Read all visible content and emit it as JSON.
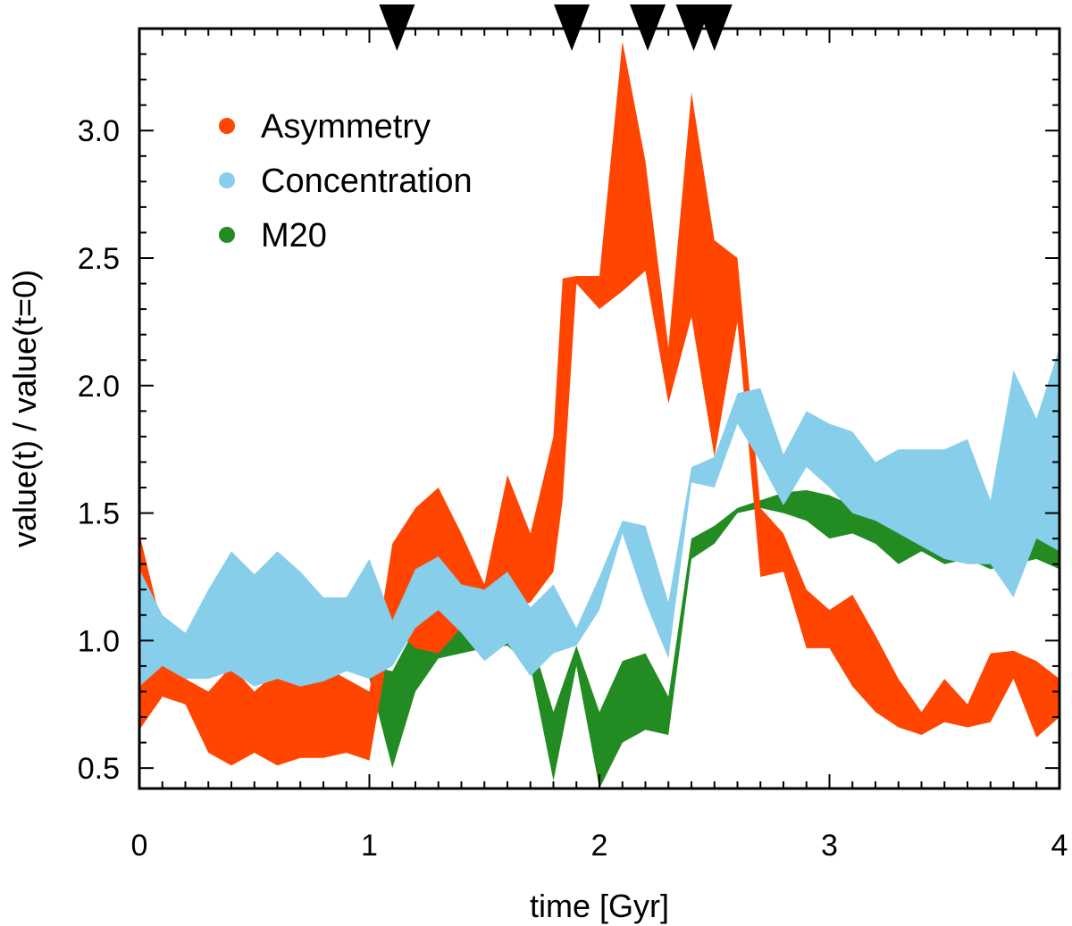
{
  "chart_data": {
    "type": "area",
    "xlabel": "time [Gyr]",
    "ylabel": "value(t) / value(t=0)",
    "xlim": [
      0,
      4
    ],
    "ylim": [
      0.42,
      3.4
    ],
    "xticks": [
      {
        "value": 0,
        "label": "0"
      },
      {
        "value": 1,
        "label": "1"
      },
      {
        "value": 2,
        "label": "2"
      },
      {
        "value": 3,
        "label": "3"
      },
      {
        "value": 4,
        "label": "4"
      }
    ],
    "yticks": [
      {
        "value": 0.5,
        "label": "0.5"
      },
      {
        "value": 1.0,
        "label": "1.0"
      },
      {
        "value": 1.5,
        "label": "1.5"
      },
      {
        "value": 2.0,
        "label": "2.0"
      },
      {
        "value": 2.5,
        "label": "2.5"
      },
      {
        "value": 3.0,
        "label": "3.0"
      }
    ],
    "event_markers": [
      1.12,
      1.88,
      2.21,
      2.41,
      2.5
    ],
    "legend_position": "top-left",
    "series": [
      {
        "name": "M20",
        "color": "#228B22",
        "x": [
          1.0,
          1.1,
          1.2,
          1.3,
          1.4,
          1.5,
          1.6,
          1.7,
          1.8,
          1.9,
          2.0,
          2.1,
          2.2,
          2.3,
          2.4,
          2.5,
          2.6,
          2.7,
          2.8,
          2.9,
          3.0,
          3.1,
          3.2,
          3.3,
          3.4,
          3.5,
          3.6,
          3.7,
          3.8,
          3.9,
          4.0
        ],
        "upper": [
          0.9,
          0.88,
          1.05,
          1.0,
          1.1,
          1.08,
          1.12,
          1.02,
          0.72,
          0.98,
          0.72,
          0.92,
          0.95,
          0.78,
          1.4,
          1.45,
          1.52,
          1.55,
          1.58,
          1.59,
          1.57,
          1.53,
          1.5,
          1.45,
          1.4,
          1.45,
          1.48,
          1.42,
          1.45,
          1.5,
          1.5
        ],
        "lower": [
          0.85,
          0.5,
          0.8,
          0.93,
          0.95,
          0.97,
          0.98,
          0.9,
          0.45,
          0.9,
          0.42,
          0.6,
          0.65,
          0.63,
          1.32,
          1.38,
          1.5,
          1.52,
          1.5,
          1.47,
          1.4,
          1.42,
          1.38,
          1.3,
          1.35,
          1.3,
          1.32,
          1.28,
          1.3,
          1.32,
          1.28
        ]
      },
      {
        "name": "Asymmetry",
        "color": "#FF4500",
        "x": [
          0.0,
          0.1,
          0.2,
          0.3,
          0.4,
          0.5,
          0.6,
          0.7,
          0.8,
          0.9,
          1.0,
          1.1,
          1.2,
          1.3,
          1.4,
          1.5,
          1.6,
          1.7,
          1.8,
          1.84,
          1.9,
          2.0,
          2.1,
          2.2,
          2.3,
          2.4,
          2.5,
          2.6,
          2.7,
          2.8,
          2.9,
          3.0,
          3.1,
          3.2,
          3.3,
          3.4,
          3.5,
          3.6,
          3.7,
          3.8,
          3.9,
          4.0
        ],
        "upper": [
          1.42,
          1.05,
          0.85,
          0.8,
          0.9,
          0.8,
          0.88,
          0.85,
          0.9,
          0.85,
          0.8,
          1.38,
          1.52,
          1.6,
          1.42,
          1.22,
          1.65,
          1.42,
          1.8,
          2.42,
          2.43,
          2.43,
          3.35,
          2.88,
          2.15,
          3.15,
          2.57,
          2.5,
          1.52,
          1.42,
          1.2,
          1.12,
          1.18,
          1.02,
          0.85,
          0.72,
          0.85,
          0.75,
          0.95,
          0.96,
          0.92,
          0.85
        ],
        "lower": [
          0.65,
          0.78,
          0.75,
          0.56,
          0.51,
          0.56,
          0.51,
          0.54,
          0.54,
          0.56,
          0.53,
          1.05,
          0.97,
          0.95,
          1.05,
          1.05,
          1.12,
          1.15,
          1.27,
          1.55,
          2.4,
          2.3,
          2.37,
          2.45,
          1.93,
          2.27,
          1.72,
          2.25,
          1.25,
          1.27,
          0.97,
          0.97,
          0.82,
          0.72,
          0.66,
          0.63,
          0.68,
          0.66,
          0.68,
          0.85,
          0.62,
          0.7
        ]
      },
      {
        "name": "Concentration",
        "color": "#87CEEB",
        "x": [
          0.0,
          0.1,
          0.2,
          0.3,
          0.4,
          0.5,
          0.6,
          0.7,
          0.8,
          0.9,
          1.0,
          1.1,
          1.2,
          1.3,
          1.4,
          1.5,
          1.6,
          1.7,
          1.8,
          1.9,
          2.0,
          2.1,
          2.2,
          2.3,
          2.4,
          2.5,
          2.6,
          2.7,
          2.8,
          2.9,
          3.0,
          3.1,
          3.2,
          3.3,
          3.4,
          3.5,
          3.6,
          3.7,
          3.8,
          3.9,
          4.0
        ],
        "upper": [
          1.28,
          1.1,
          1.03,
          1.2,
          1.35,
          1.26,
          1.35,
          1.27,
          1.17,
          1.17,
          1.32,
          1.08,
          1.28,
          1.33,
          1.22,
          1.2,
          1.27,
          1.13,
          1.22,
          1.05,
          1.25,
          1.47,
          1.45,
          1.15,
          1.68,
          1.72,
          1.97,
          1.99,
          1.73,
          1.9,
          1.85,
          1.82,
          1.7,
          1.75,
          1.75,
          1.75,
          1.79,
          1.55,
          2.06,
          1.87,
          2.15
        ],
        "lower": [
          0.82,
          0.9,
          0.85,
          0.85,
          0.88,
          0.82,
          0.85,
          0.82,
          0.84,
          0.88,
          0.85,
          0.9,
          1.05,
          1.12,
          1.03,
          0.92,
          0.99,
          0.86,
          0.95,
          0.98,
          1.12,
          1.42,
          1.15,
          0.93,
          1.62,
          1.6,
          1.85,
          1.7,
          1.53,
          1.68,
          1.6,
          1.5,
          1.47,
          1.42,
          1.37,
          1.32,
          1.3,
          1.3,
          1.17,
          1.4,
          1.35
        ]
      }
    ]
  }
}
